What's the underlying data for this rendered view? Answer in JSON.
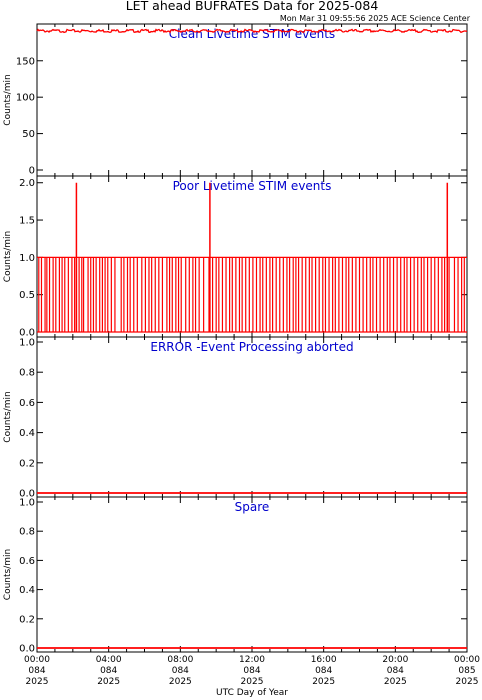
{
  "header": {
    "title": "LET ahead BUFRATES Data for 2025-084",
    "timestamp": "Mon Mar 31 09:55:56 2025 ACE Science Center"
  },
  "xaxis": {
    "label": "UTC Day of Year",
    "ticks": [
      {
        "time": "00:00",
        "day": "084",
        "year": "2025"
      },
      {
        "time": "04:00",
        "day": "084",
        "year": "2025"
      },
      {
        "time": "08:00",
        "day": "084",
        "year": "2025"
      },
      {
        "time": "12:00",
        "day": "084",
        "year": "2025"
      },
      {
        "time": "16:00",
        "day": "084",
        "year": "2025"
      },
      {
        "time": "20:00",
        "day": "084",
        "year": "2025"
      },
      {
        "time": "00:00",
        "day": "085",
        "year": "2025"
      }
    ]
  },
  "colors": {
    "data": "#ff0000",
    "title": "#0000cc",
    "axes": "#000000"
  },
  "chart_data": [
    {
      "type": "line",
      "title": "Clean Livetime STIM events",
      "xlabel": "UTC Day of Year",
      "ylabel": "Counts/min",
      "xlim": [
        "2025-084 00:00",
        "2025-085 00:00"
      ],
      "ylim": [
        0,
        195
      ],
      "yticks": [
        0,
        50,
        100,
        150
      ],
      "ytick_labels": [
        "0",
        "50",
        "100",
        "150"
      ],
      "grid": false,
      "series": [
        {
          "x_range_hours": [
            0,
            24
          ],
          "values_baseline": 191,
          "noise": 2
        }
      ]
    },
    {
      "type": "line",
      "title": "Poor Livetime STIM events",
      "xlabel": "UTC Day of Year",
      "ylabel": "Counts/min",
      "xlim": [
        "2025-084 00:00",
        "2025-085 00:00"
      ],
      "ylim": [
        0,
        2.05
      ],
      "yticks": [
        0,
        0.5,
        1.0,
        1.5,
        2.0
      ],
      "ytick_labels": [
        "0.0",
        "0.5",
        "1.0",
        "1.5",
        "2.0"
      ],
      "grid": false,
      "series": [
        {
          "x_range_hours": [
            0,
            24
          ],
          "values_baseline": 0,
          "pulses_value_1_hours": [
            0.1,
            0.25,
            0.45,
            0.55,
            0.7,
            0.9,
            1.05,
            1.25,
            1.4,
            1.55,
            1.75,
            1.95,
            2.1,
            2.35,
            2.5,
            2.6,
            2.85,
            3.0,
            3.15,
            3.3,
            3.5,
            3.65,
            3.8,
            3.95,
            4.15,
            4.35,
            4.7,
            4.85,
            5.05,
            5.2,
            5.4,
            5.6,
            5.85,
            6.05,
            6.25,
            6.4,
            6.6,
            6.8,
            7.0,
            7.25,
            7.4,
            7.55,
            7.75,
            7.9,
            8.05,
            8.3,
            8.5,
            8.7,
            8.85,
            9.05,
            9.3,
            9.6,
            9.8,
            10.0,
            10.15,
            10.35,
            10.55,
            10.75,
            10.9,
            11.1,
            11.3,
            11.45,
            11.65,
            11.85,
            12.05,
            12.25,
            12.45,
            12.6,
            12.8,
            13.0,
            13.15,
            13.35,
            13.55,
            13.75,
            13.95,
            14.1,
            14.3,
            14.45,
            14.6,
            14.8,
            15.0,
            15.2,
            15.35,
            15.55,
            15.75,
            15.95,
            16.1,
            16.3,
            16.5,
            16.65,
            16.85,
            17.05,
            17.25,
            17.4,
            17.6,
            17.8,
            18.0,
            18.2,
            18.4,
            18.6,
            18.75,
            18.95,
            19.15,
            19.35,
            19.55,
            19.7,
            19.9,
            20.1,
            20.3,
            20.5,
            20.65,
            20.85,
            21.05,
            21.25,
            21.45,
            21.6,
            21.8,
            22.0,
            22.2,
            22.4,
            22.6,
            22.75,
            23.0,
            23.3,
            23.5,
            23.7,
            23.85
          ],
          "pulses_value_2_hours": [
            2.2,
            9.65,
            22.9
          ]
        }
      ]
    },
    {
      "type": "line",
      "title": "ERROR -Event Processing aborted",
      "xlabel": "UTC Day of Year",
      "ylabel": "Counts/min",
      "xlim": [
        "2025-084 00:00",
        "2025-085 00:00"
      ],
      "ylim": [
        0,
        1.0
      ],
      "yticks": [
        0,
        0.2,
        0.4,
        0.6,
        0.8,
        1.0
      ],
      "ytick_labels": [
        "0.0",
        "0.2",
        "0.4",
        "0.6",
        "0.8",
        "1.0"
      ],
      "grid": false,
      "series": [
        {
          "x_range_hours": [
            0,
            24
          ],
          "values_baseline": 0
        }
      ]
    },
    {
      "type": "line",
      "title": "Spare",
      "xlabel": "UTC Day of Year",
      "ylabel": "Counts/min",
      "xlim": [
        "2025-084 00:00",
        "2025-085 00:00"
      ],
      "ylim": [
        0,
        1.0
      ],
      "yticks": [
        0,
        0.2,
        0.4,
        0.6,
        0.8,
        1.0
      ],
      "ytick_labels": [
        "0.0",
        "0.2",
        "0.4",
        "0.6",
        "0.8",
        "1.0"
      ],
      "grid": false,
      "series": [
        {
          "x_range_hours": [
            0,
            24
          ],
          "values_baseline": 0
        }
      ]
    }
  ]
}
